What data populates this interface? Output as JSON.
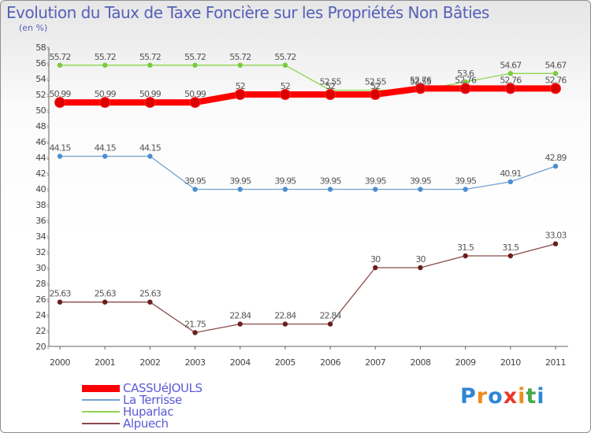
{
  "chart_data": {
    "type": "line",
    "title": "Evolution du Taux de Taxe Foncière sur les Propriétés Non Bâties",
    "unit_label": "(en %)",
    "categories": [
      "2000",
      "2001",
      "2002",
      "2003",
      "2004",
      "2005",
      "2006",
      "2007",
      "2008",
      "2009",
      "2010",
      "2011"
    ],
    "ylim": [
      20,
      58
    ],
    "yticks": [
      20,
      22,
      24,
      26,
      28,
      30,
      32,
      34,
      36,
      38,
      40,
      42,
      44,
      46,
      48,
      50,
      52,
      54,
      56,
      58
    ],
    "series": [
      {
        "name": "CASSUéJOULS",
        "color": "#ff0000",
        "marker": "#cc0000",
        "values": [
          50.99,
          50.99,
          50.99,
          50.99,
          52,
          52,
          52,
          52,
          52.76,
          52.76,
          52.76,
          52.76
        ],
        "labels": [
          "50.99",
          "50.99",
          "50.99",
          "50.99",
          "52",
          "52",
          "52",
          "52",
          "52.76",
          "52.76",
          "52.76",
          "52.76"
        ]
      },
      {
        "name": "La Terrisse",
        "color": "#6fa0d0",
        "marker": "#4a8fd0",
        "values": [
          44.15,
          44.15,
          44.15,
          39.95,
          39.95,
          39.95,
          39.95,
          39.95,
          39.95,
          39.95,
          40.91,
          42.89
        ],
        "labels": [
          "44.15",
          "44.15",
          "44.15",
          "39.95",
          "39.95",
          "39.95",
          "39.95",
          "39.95",
          "39.95",
          "39.95",
          "40.91",
          "42.89"
        ]
      },
      {
        "name": "Huparlac",
        "color": "#8ed64e",
        "marker": "#7acb3c",
        "values": [
          55.72,
          55.72,
          55.72,
          55.72,
          55.72,
          55.72,
          52.55,
          52.55,
          52.55,
          53.6,
          54.67,
          54.67
        ],
        "labels": [
          "55.72",
          "55.72",
          "55.72",
          "55.72",
          "55.72",
          "55.72",
          "52.55",
          "52.55",
          "52.55",
          "53.6",
          "54.67",
          "54.67"
        ]
      },
      {
        "name": "Alpuech",
        "color": "#8a4a4a",
        "marker": "#6b1f1f",
        "values": [
          25.63,
          25.63,
          25.63,
          21.75,
          22.84,
          22.84,
          22.84,
          30,
          30,
          31.5,
          31.5,
          33.03
        ],
        "labels": [
          "25.63",
          "25.63",
          "25.63",
          "21.75",
          "22.84",
          "22.84",
          "22.84",
          "30",
          "30",
          "31.5",
          "31.5",
          "33.03"
        ]
      }
    ]
  },
  "brand": {
    "letters": [
      "P",
      "r",
      "o",
      "x",
      "i",
      "t",
      "i"
    ]
  }
}
